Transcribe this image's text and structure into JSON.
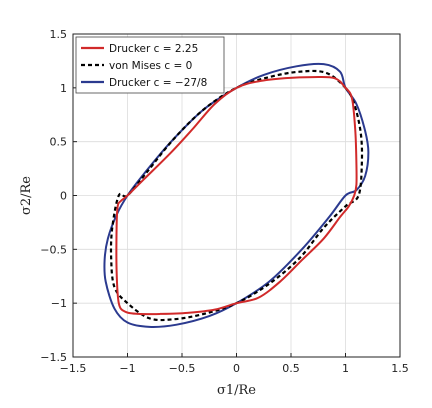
{
  "chart_data": {
    "type": "line",
    "xlabel": "σ1/Re",
    "ylabel": "σ2/Re",
    "xlim": [
      -1.5,
      1.5
    ],
    "ylim": [
      -1.5,
      1.5
    ],
    "x_ticks": [
      "−1.5",
      "−1",
      "−0.5",
      "0",
      "0.5",
      "1",
      "1.5"
    ],
    "y_ticks": [
      "−1.5",
      "−1",
      "−0.5",
      "0",
      "0.5",
      "1",
      "1.5"
    ],
    "grid": true,
    "legend_position": "top-left",
    "series": [
      {
        "name": "Drucker c = 2.25",
        "color": "#d12a2a",
        "dash": "solid",
        "x": [
          1.0,
          1.06,
          1.09,
          1.1,
          1.1,
          1.08,
          1.03,
          0.95,
          0.8,
          0.6,
          0.4,
          0.2,
          0.0,
          -0.2,
          -0.45,
          -0.7,
          -0.9,
          -1.02,
          -1.08,
          -1.1,
          -1.1,
          -1.09,
          -1.06,
          -1.0,
          -0.85,
          -0.6,
          -0.4,
          -0.2,
          0.0,
          0.2,
          0.45,
          0.7,
          0.9,
          1.0
        ],
        "y": [
          1.0,
          0.9,
          0.6,
          0.3,
          0.1,
          0.0,
          -0.1,
          -0.2,
          -0.4,
          -0.6,
          -0.8,
          -0.95,
          -1.0,
          -1.06,
          -1.09,
          -1.1,
          -1.1,
          -1.08,
          -1.0,
          -0.7,
          -0.3,
          -0.1,
          -0.05,
          0.0,
          0.15,
          0.4,
          0.62,
          0.85,
          1.0,
          1.06,
          1.09,
          1.1,
          1.09,
          1.0
        ]
      },
      {
        "name": "von Mises c = 0",
        "color": "#000000",
        "dash": "dashed",
        "x": [
          1.0,
          1.08,
          1.14,
          1.15,
          1.12,
          1.0,
          0.8,
          0.58,
          0.3,
          0.0,
          -0.3,
          -0.58,
          -0.8,
          -1.0,
          -1.12,
          -1.15,
          -1.14,
          -1.08,
          -1.0,
          -0.82,
          -0.58,
          -0.3,
          0.0,
          0.3,
          0.58,
          0.82,
          1.0
        ],
        "y": [
          1.0,
          0.85,
          0.58,
          0.3,
          0.0,
          -0.1,
          -0.3,
          -0.58,
          -0.82,
          -1.0,
          -1.1,
          -1.15,
          -1.14,
          -1.0,
          -0.85,
          -0.58,
          -0.3,
          0.0,
          0.0,
          0.22,
          0.52,
          0.8,
          1.0,
          1.1,
          1.15,
          1.14,
          1.0
        ]
      },
      {
        "name": "Drucker c = −27/8",
        "color": "#2b3a8f",
        "dash": "solid",
        "x": [
          1.0,
          1.1,
          1.18,
          1.21,
          1.18,
          1.1,
          1.0,
          0.85,
          0.6,
          0.3,
          0.0,
          -0.25,
          -0.55,
          -0.8,
          -1.0,
          -1.12,
          -1.2,
          -1.21,
          -1.18,
          -1.1,
          -1.0,
          -0.85,
          -0.6,
          -0.3,
          0.0,
          0.25,
          0.55,
          0.8,
          0.95,
          1.0
        ],
        "y": [
          1.0,
          0.85,
          0.6,
          0.4,
          0.18,
          0.05,
          0.0,
          -0.2,
          -0.5,
          -0.8,
          -1.0,
          -1.12,
          -1.2,
          -1.22,
          -1.18,
          -1.05,
          -0.8,
          -0.6,
          -0.4,
          -0.18,
          0.0,
          0.2,
          0.5,
          0.8,
          1.0,
          1.12,
          1.2,
          1.22,
          1.15,
          1.0
        ]
      }
    ]
  }
}
